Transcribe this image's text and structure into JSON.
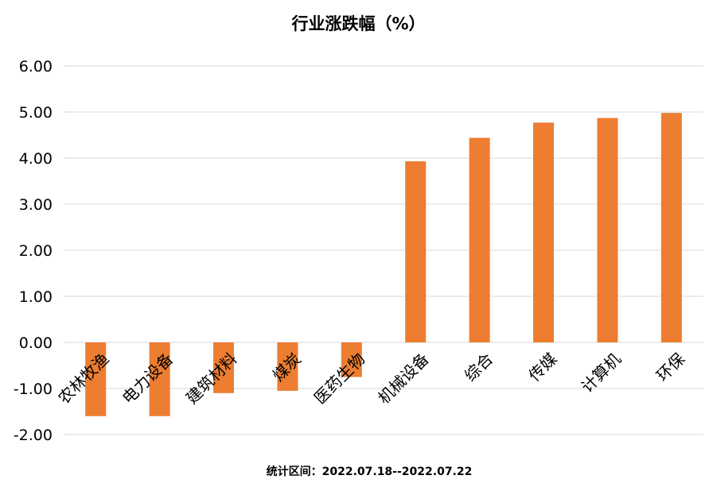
{
  "chart_data": {
    "type": "bar",
    "title": "行业涨跌幅（%）",
    "footer": "统计区间：2022.07.18--2022.07.22",
    "categories": [
      "农林牧渔",
      "电力设备",
      "建筑材料",
      "煤炭",
      "医药生物",
      "机械设备",
      "综合",
      "传媒",
      "计算机",
      "环保"
    ],
    "values": [
      -1.6,
      -1.6,
      -1.1,
      -1.05,
      -0.75,
      3.93,
      4.44,
      4.77,
      4.87,
      4.98
    ],
    "ylim": [
      -2.0,
      6.0
    ],
    "yticks": [
      "6.00",
      "5.00",
      "4.00",
      "3.00",
      "2.00",
      "1.00",
      "0.00",
      "-1.00",
      "-2.00"
    ],
    "ytick_values": [
      6,
      5,
      4,
      3,
      2,
      1,
      0,
      -1,
      -2
    ],
    "bar_color": "#ED7D31",
    "grid_color": "#D9D9D9",
    "grid": true,
    "legend": false
  }
}
